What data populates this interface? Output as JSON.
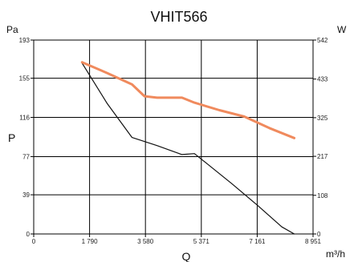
{
  "chart_data": {
    "type": "line",
    "title": "VHIT566",
    "x_unit_label": "m³/h",
    "x_name": "Q",
    "y_left_unit": "Pa",
    "y_left_name": "P",
    "y_right_unit": "W",
    "x_ticks": [
      0,
      1790,
      3580,
      5371,
      7161,
      8951
    ],
    "x_tick_labels": [
      "0",
      "1 790",
      "3 580",
      "5 371",
      "7 161",
      "8 951"
    ],
    "y_left_ticks": [
      0,
      39,
      77,
      116,
      155,
      193
    ],
    "y_left_tick_labels": [
      "0",
      "39",
      "77",
      "116",
      "155",
      "193"
    ],
    "y_right_ticks": [
      0,
      108,
      217,
      325,
      433,
      542
    ],
    "y_right_tick_labels": [
      "0",
      "108",
      "217",
      "325",
      "433",
      "542"
    ],
    "xlim": [
      0,
      8951
    ],
    "ylim_left": [
      0,
      193
    ],
    "ylim_right": [
      0,
      542
    ],
    "grid": true,
    "series": [
      {
        "axis": "left",
        "color": "#111111",
        "x": [
          1550,
          2350,
          3150,
          3950,
          4750,
          5150,
          5550,
          6350,
          7150,
          7950,
          8350
        ],
        "y": [
          170,
          130,
          96,
          88,
          79,
          80,
          70,
          50,
          29,
          7,
          0
        ]
      },
      {
        "axis": "right",
        "color": "#f08a5d",
        "x": [
          1550,
          2350,
          3150,
          3550,
          3950,
          4750,
          5150,
          5950,
          6750,
          7550,
          8350
        ],
        "y": [
          480,
          450,
          418,
          385,
          381,
          381,
          367,
          346,
          328,
          296,
          268
        ]
      }
    ]
  }
}
